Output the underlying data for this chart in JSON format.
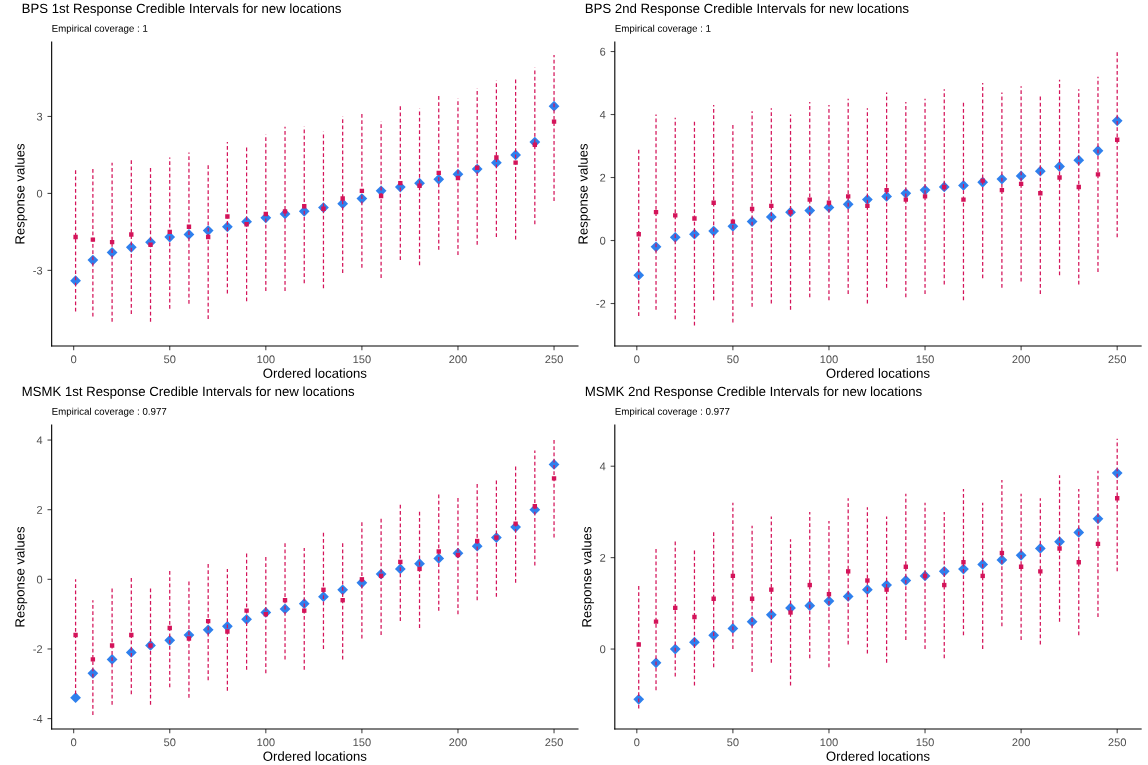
{
  "chart_data": [
    {
      "type": "scatter",
      "title": "BPS 1st Response Credible Intervals for new locations",
      "subtitle": "Empirical coverage : 1",
      "xlabel": "Ordered locations",
      "ylabel": "Response values",
      "x": [
        1,
        10,
        20,
        30,
        40,
        50,
        60,
        70,
        80,
        90,
        100,
        110,
        120,
        130,
        140,
        150,
        160,
        170,
        180,
        190,
        200,
        210,
        220,
        230,
        240,
        250
      ],
      "xlim": [
        -11.45,
        262.45
      ],
      "xticks": [
        0,
        50,
        100,
        150,
        200,
        250
      ],
      "ylim": [
        -5.95,
        5.9
      ],
      "yticks": [
        -3,
        0,
        3
      ],
      "series": [
        {
          "color": "#d4145a",
          "marker": "square",
          "line_style": "dashed",
          "values": [
            -1.7,
            -1.8,
            -1.9,
            -1.6,
            -2.0,
            -1.5,
            -1.3,
            -1.7,
            -0.9,
            -1.2,
            -0.8,
            -0.7,
            -0.5,
            -0.6,
            -0.2,
            0.1,
            -0.1,
            0.4,
            0.3,
            0.8,
            0.6,
            1.0,
            1.4,
            1.2,
            1.9,
            2.8
          ],
          "errors": [
            [
              -4.6,
              0.9
            ],
            [
              -4.8,
              1.0
            ],
            [
              -5.0,
              1.2
            ],
            [
              -4.7,
              1.3
            ],
            [
              -5.0,
              1.0
            ],
            [
              -4.5,
              1.4
            ],
            [
              -4.3,
              1.6
            ],
            [
              -4.9,
              1.2
            ],
            [
              -3.9,
              2.0
            ],
            [
              -4.2,
              1.8
            ],
            [
              -3.8,
              2.3
            ],
            [
              -3.8,
              2.6
            ],
            [
              -3.5,
              2.6
            ],
            [
              -3.7,
              2.4
            ],
            [
              -3.1,
              3.0
            ],
            [
              -2.9,
              3.1
            ],
            [
              -3.3,
              2.8
            ],
            [
              -2.6,
              3.5
            ],
            [
              -2.8,
              3.3
            ],
            [
              -2.2,
              3.8
            ],
            [
              -2.4,
              3.7
            ],
            [
              -2.0,
              4.1
            ],
            [
              -1.7,
              4.4
            ],
            [
              -1.8,
              4.5
            ],
            [
              -1.2,
              4.9
            ],
            [
              -0.3,
              5.4
            ]
          ]
        },
        {
          "color": "#2f80ed",
          "marker": "diamond",
          "values": [
            -3.4,
            -2.6,
            -2.3,
            -2.1,
            -1.9,
            -1.7,
            -1.6,
            -1.45,
            -1.3,
            -1.1,
            -0.95,
            -0.8,
            -0.7,
            -0.55,
            -0.4,
            -0.2,
            0.1,
            0.25,
            0.4,
            0.55,
            0.75,
            0.95,
            1.2,
            1.5,
            2.0,
            3.4
          ]
        }
      ]
    },
    {
      "type": "scatter",
      "title": "BPS 2nd Response Credible Intervals for new locations",
      "subtitle": "Empirical coverage : 1",
      "xlabel": "Ordered locations",
      "ylabel": "Response values",
      "x": [
        1,
        10,
        20,
        30,
        40,
        50,
        60,
        70,
        80,
        90,
        100,
        110,
        120,
        130,
        140,
        150,
        160,
        170,
        180,
        190,
        200,
        210,
        220,
        230,
        240,
        250
      ],
      "xlim": [
        -11.45,
        262.45
      ],
      "xticks": [
        0,
        50,
        100,
        150,
        200,
        250
      ],
      "ylim": [
        -3.35,
        6.3
      ],
      "yticks": [
        -2,
        0,
        2,
        4,
        6
      ],
      "series": [
        {
          "color": "#d4145a",
          "marker": "square",
          "line_style": "dashed",
          "values": [
            0.2,
            0.9,
            0.8,
            0.7,
            1.2,
            0.6,
            1.0,
            1.1,
            0.9,
            1.3,
            1.2,
            1.4,
            1.1,
            1.6,
            1.3,
            1.4,
            1.7,
            1.3,
            1.9,
            1.6,
            1.8,
            1.5,
            2.0,
            1.7,
            2.1,
            3.2
          ],
          "errors": [
            [
              -2.4,
              2.9
            ],
            [
              -2.2,
              4.0
            ],
            [
              -2.5,
              3.9
            ],
            [
              -2.7,
              3.8
            ],
            [
              -1.9,
              4.3
            ],
            [
              -2.6,
              3.7
            ],
            [
              -2.1,
              4.1
            ],
            [
              -2.0,
              4.2
            ],
            [
              -2.2,
              4.0
            ],
            [
              -1.8,
              4.4
            ],
            [
              -1.9,
              4.3
            ],
            [
              -1.7,
              4.5
            ],
            [
              -2.0,
              4.2
            ],
            [
              -1.5,
              4.7
            ],
            [
              -1.8,
              4.4
            ],
            [
              -1.7,
              4.5
            ],
            [
              -1.4,
              4.8
            ],
            [
              -1.9,
              4.4
            ],
            [
              -1.2,
              5.0
            ],
            [
              -1.5,
              4.7
            ],
            [
              -1.3,
              4.9
            ],
            [
              -1.7,
              4.6
            ],
            [
              -1.1,
              5.1
            ],
            [
              -1.4,
              4.8
            ],
            [
              -1.0,
              5.2
            ],
            [
              0.1,
              6.0
            ]
          ]
        },
        {
          "color": "#2f80ed",
          "marker": "diamond",
          "values": [
            -1.1,
            -0.2,
            0.1,
            0.2,
            0.3,
            0.45,
            0.6,
            0.75,
            0.9,
            0.95,
            1.05,
            1.15,
            1.3,
            1.4,
            1.5,
            1.6,
            1.7,
            1.75,
            1.85,
            1.95,
            2.05,
            2.2,
            2.35,
            2.55,
            2.85,
            3.8
          ]
        }
      ]
    },
    {
      "type": "scatter",
      "title": "MSMK 1st Response Credible Intervals for new locations",
      "subtitle": "Empirical coverage : 0.977",
      "xlabel": "Ordered locations",
      "ylabel": "Response values",
      "x": [
        1,
        10,
        20,
        30,
        40,
        50,
        60,
        70,
        80,
        90,
        100,
        110,
        120,
        130,
        140,
        150,
        160,
        170,
        180,
        190,
        200,
        210,
        220,
        230,
        240,
        250
      ],
      "xlim": [
        -11.45,
        262.45
      ],
      "xticks": [
        0,
        50,
        100,
        150,
        200,
        250
      ],
      "ylim": [
        -4.3,
        4.43
      ],
      "yticks": [
        -4,
        -2,
        0,
        2,
        4
      ],
      "series": [
        {
          "color": "#d4145a",
          "marker": "square",
          "line_style": "dashed",
          "values": [
            -1.6,
            -2.3,
            -1.9,
            -1.6,
            -1.9,
            -1.4,
            -1.7,
            -1.2,
            -1.5,
            -0.9,
            -1.0,
            -0.6,
            -0.9,
            -0.3,
            -0.6,
            0.0,
            0.1,
            0.5,
            0.3,
            0.8,
            0.7,
            1.1,
            1.2,
            1.6,
            2.1,
            2.9
          ],
          "errors": [
            [
              -3.3,
              0.0
            ],
            [
              -3.9,
              -0.6
            ],
            [
              -3.6,
              -0.2
            ],
            [
              -3.3,
              0.1
            ],
            [
              -3.6,
              -0.2
            ],
            [
              -3.1,
              0.3
            ],
            [
              -3.4,
              0.0
            ],
            [
              -2.9,
              0.5
            ],
            [
              -3.2,
              0.3
            ],
            [
              -2.6,
              0.8
            ],
            [
              -2.7,
              0.7
            ],
            [
              -2.3,
              1.1
            ],
            [
              -2.6,
              0.9
            ],
            [
              -2.0,
              1.4
            ],
            [
              -2.3,
              1.1
            ],
            [
              -1.7,
              1.7
            ],
            [
              -1.6,
              1.8
            ],
            [
              -1.2,
              2.2
            ],
            [
              -1.4,
              2.0
            ],
            [
              -0.9,
              2.5
            ],
            [
              -1.0,
              2.4
            ],
            [
              -0.6,
              2.8
            ],
            [
              -0.5,
              2.9
            ],
            [
              -0.1,
              3.3
            ],
            [
              0.4,
              3.7
            ],
            [
              1.2,
              4.0
            ]
          ]
        },
        {
          "color": "#2f80ed",
          "marker": "diamond",
          "values": [
            -3.4,
            -2.7,
            -2.3,
            -2.1,
            -1.9,
            -1.75,
            -1.6,
            -1.45,
            -1.35,
            -1.15,
            -0.95,
            -0.85,
            -0.7,
            -0.5,
            -0.3,
            -0.1,
            0.15,
            0.3,
            0.45,
            0.6,
            0.75,
            0.95,
            1.2,
            1.5,
            2.0,
            3.3
          ]
        }
      ]
    },
    {
      "type": "scatter",
      "title": "MSMK 2nd Response Credible Intervals for new locations",
      "subtitle": "Empirical coverage : 0.977",
      "xlabel": "Ordered locations",
      "ylabel": "Response values",
      "x": [
        1,
        10,
        20,
        30,
        40,
        50,
        60,
        70,
        80,
        90,
        100,
        110,
        120,
        130,
        140,
        150,
        160,
        170,
        180,
        190,
        200,
        210,
        220,
        230,
        240,
        250
      ],
      "xlim": [
        -11.45,
        262.45
      ],
      "xticks": [
        0,
        50,
        100,
        150,
        200,
        250
      ],
      "ylim": [
        -1.75,
        4.9
      ],
      "yticks": [
        0,
        2,
        4
      ],
      "series": [
        {
          "color": "#d4145a",
          "marker": "square",
          "line_style": "dashed",
          "values": [
            0.1,
            0.6,
            0.9,
            0.7,
            1.1,
            1.6,
            1.1,
            1.3,
            0.8,
            1.4,
            1.2,
            1.7,
            1.5,
            1.3,
            1.8,
            1.6,
            1.4,
            1.9,
            1.6,
            2.1,
            1.8,
            1.7,
            2.2,
            1.9,
            2.3,
            3.3
          ],
          "errors": [
            [
              -1.3,
              1.4
            ],
            [
              -0.9,
              2.2
            ],
            [
              -0.6,
              2.4
            ],
            [
              -0.8,
              2.2
            ],
            [
              -0.4,
              2.6
            ],
            [
              0.0,
              3.2
            ],
            [
              -0.5,
              2.7
            ],
            [
              -0.3,
              2.9
            ],
            [
              -0.8,
              2.4
            ],
            [
              -0.2,
              3.0
            ],
            [
              -0.4,
              2.8
            ],
            [
              0.1,
              3.3
            ],
            [
              -0.1,
              3.1
            ],
            [
              -0.3,
              2.9
            ],
            [
              0.2,
              3.4
            ],
            [
              0.0,
              3.2
            ],
            [
              -0.2,
              3.0
            ],
            [
              0.3,
              3.5
            ],
            [
              0.0,
              3.2
            ],
            [
              0.5,
              3.7
            ],
            [
              0.2,
              3.4
            ],
            [
              0.1,
              3.3
            ],
            [
              0.6,
              3.8
            ],
            [
              0.3,
              3.5
            ],
            [
              0.7,
              3.9
            ],
            [
              1.7,
              4.6
            ]
          ]
        },
        {
          "color": "#2f80ed",
          "marker": "diamond",
          "values": [
            -1.1,
            -0.3,
            0.0,
            0.15,
            0.3,
            0.45,
            0.6,
            0.75,
            0.9,
            0.95,
            1.05,
            1.15,
            1.3,
            1.4,
            1.5,
            1.6,
            1.7,
            1.75,
            1.85,
            1.95,
            2.05,
            2.2,
            2.35,
            2.55,
            2.85,
            3.85
          ]
        }
      ]
    }
  ]
}
